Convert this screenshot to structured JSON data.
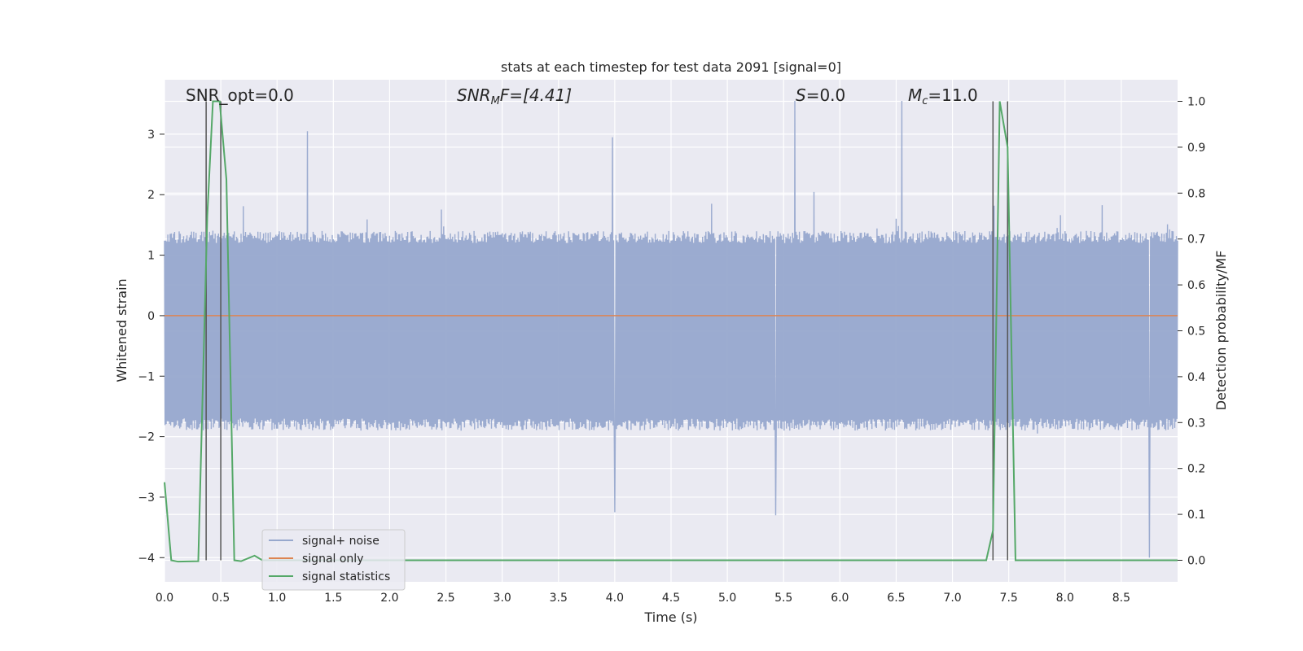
{
  "colors": {
    "plot_bg": "#eaeaf2",
    "grid": "#ffffff",
    "noise": "#97a8cd",
    "signal": "#dd8452",
    "stats": "#55a868",
    "vline": "#555555",
    "text": "#262626"
  },
  "chart_data": {
    "type": "line",
    "title": "stats at each timestep for test data 2091 [signal=0]",
    "xlabel": "Time (s)",
    "ylabel": "Whitened strain",
    "y2label": "Detection probability/MF",
    "xlim": [
      0,
      9.0
    ],
    "ylim": [
      -4.4,
      3.9
    ],
    "y2lim": [
      -0.047,
      1.047
    ],
    "xticks": [
      "0.0",
      "0.5",
      "1.0",
      "1.5",
      "2.0",
      "2.5",
      "3.0",
      "3.5",
      "4.0",
      "4.5",
      "5.0",
      "5.5",
      "6.0",
      "6.5",
      "7.0",
      "7.5",
      "8.0",
      "8.5"
    ],
    "yticks": [
      "3",
      "2",
      "1",
      "0",
      "−1",
      "−2",
      "−3",
      "−4"
    ],
    "y2ticks": [
      "1.0",
      "0.9",
      "0.8",
      "0.7",
      "0.6",
      "0.5",
      "0.4",
      "0.3",
      "0.2",
      "0.1",
      "0.0"
    ],
    "grid": true,
    "legend_loc": "lower-left",
    "legend": [
      "signal+ noise",
      "signal only",
      "signal statistics"
    ],
    "annotations": {
      "snr_opt": "SNR_opt=0.0",
      "snr_mf_base": "SNR",
      "snr_mf_sub": "M",
      "snr_mf_rest": "F=[4.41]",
      "s_main": "S",
      "s_rest": "=0.0",
      "mc_main": "M",
      "mc_sub": "c",
      "mc_rest": "=11.0"
    },
    "series": [
      {
        "name": "signal+ noise",
        "kind": "noise",
        "typical_range": [
          -1.9,
          1.4
        ],
        "spike_peaks": [
          {
            "x": 1.27,
            "y": 3.05
          },
          {
            "x": 3.98,
            "y": 2.95
          },
          {
            "x": 5.6,
            "y": 3.55
          },
          {
            "x": 6.55,
            "y": 3.55
          },
          {
            "x": 5.43,
            "y": -3.3
          },
          {
            "x": 4.0,
            "y": -3.25
          },
          {
            "x": 8.75,
            "y": -4.0
          }
        ]
      },
      {
        "name": "signal only",
        "kind": "line",
        "values": [
          {
            "x": 0.0,
            "y": 0.0
          },
          {
            "x": 9.0,
            "y": 0.0
          }
        ]
      },
      {
        "name": "signal statistics",
        "kind": "line_y2",
        "values": [
          {
            "x": 0.0,
            "y": 0.17
          },
          {
            "x": 0.06,
            "y": 0.0
          },
          {
            "x": 0.12,
            "y": -0.003
          },
          {
            "x": 0.3,
            "y": -0.002
          },
          {
            "x": 0.38,
            "y": 0.75
          },
          {
            "x": 0.43,
            "y": 1.0
          },
          {
            "x": 0.49,
            "y": 1.0
          },
          {
            "x": 0.55,
            "y": 0.83
          },
          {
            "x": 0.62,
            "y": 0.0
          },
          {
            "x": 0.68,
            "y": -0.002
          },
          {
            "x": 0.8,
            "y": 0.01
          },
          {
            "x": 0.87,
            "y": 0.0
          },
          {
            "x": 7.3,
            "y": 0.0
          },
          {
            "x": 7.36,
            "y": 0.065
          },
          {
            "x": 7.42,
            "y": 1.0
          },
          {
            "x": 7.49,
            "y": 0.9
          },
          {
            "x": 7.56,
            "y": 0.0
          },
          {
            "x": 9.0,
            "y": 0.0
          }
        ]
      }
    ],
    "vlines_x": [
      0.37,
      0.5,
      7.36,
      7.49
    ]
  }
}
